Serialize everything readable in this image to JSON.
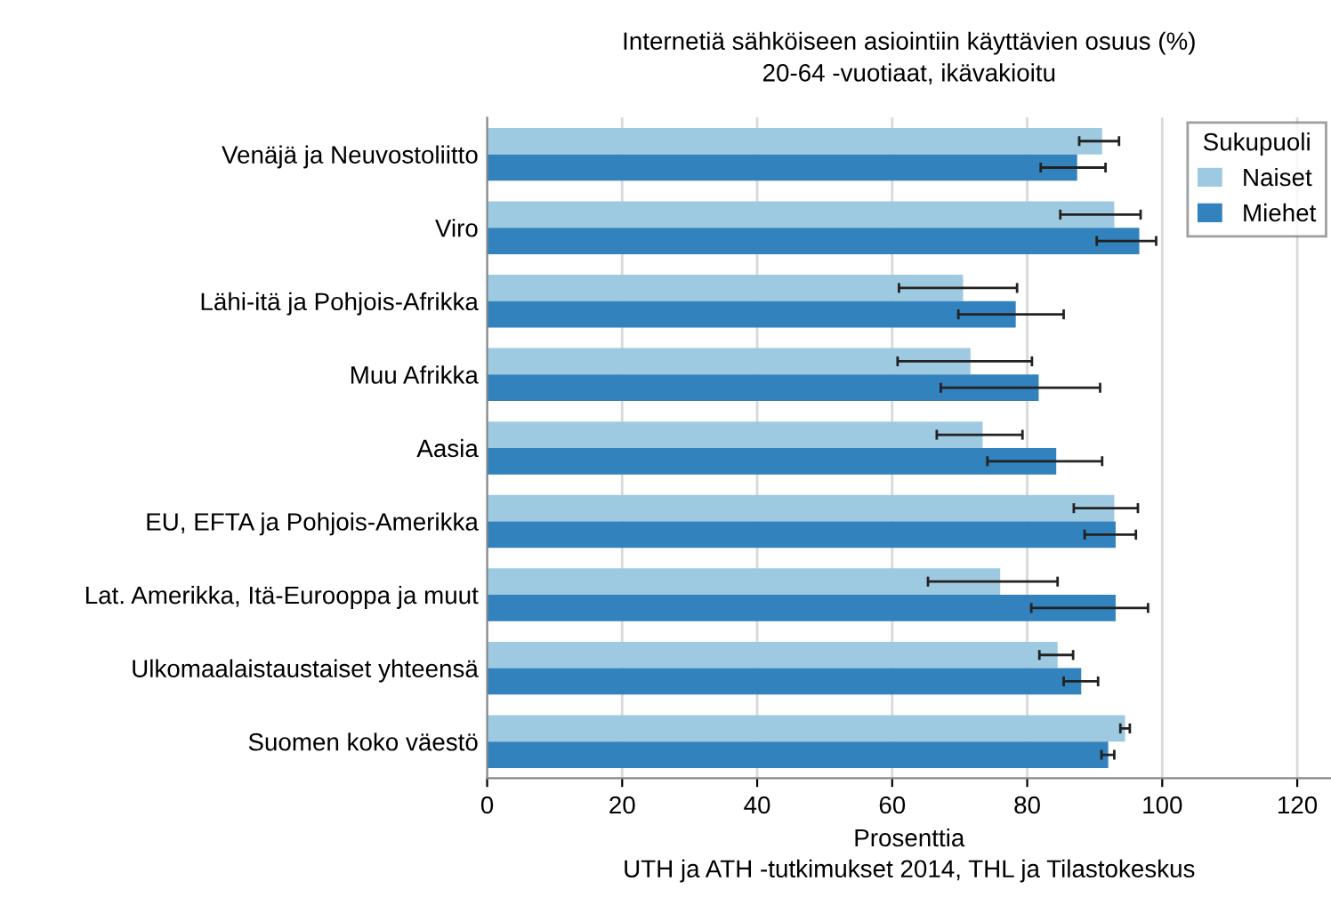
{
  "chart_data": {
    "type": "bar",
    "orientation": "horizontal",
    "title": "Internetiä sähköiseen asiointiin käyttävien osuus (%)",
    "subtitle": "20-64 -vuotiaat, ikävakioitu",
    "xlabel": "Prosenttia",
    "legend_title": "Sukupuoli",
    "annotations": [
      "UTH ja ATH -tutkimukset 2014, THL ja Tilastokeskus"
    ],
    "categories": [
      "Venäjä ja Neuvostoliitto",
      "Viro",
      "Lähi-itä ja Pohjois-Afrikka",
      "Muu Afrikka",
      "Aasia",
      "EU, EFTA ja Pohjois-Amerikka",
      "Lat. Amerikka, Itä-Eurooppa ja muut",
      "Ulkomaalaistaustaiset yhteensä",
      "Suomen koko väestö"
    ],
    "series": [
      {
        "name": "Naiset",
        "color": "#9ecae1",
        "values": [
          91.1,
          92.9,
          70.5,
          71.6,
          73.4,
          92.9,
          76.0,
          84.5,
          94.5
        ],
        "errors": [
          [
            87.7,
            93.6
          ],
          [
            84.9,
            96.8
          ],
          [
            61.0,
            78.5
          ],
          [
            60.8,
            80.7
          ],
          [
            66.6,
            79.3
          ],
          [
            86.9,
            96.4
          ],
          [
            65.3,
            84.5
          ],
          [
            81.8,
            86.8
          ],
          [
            93.8,
            95.2
          ]
        ]
      },
      {
        "name": "Miehet",
        "color": "#3182bd",
        "values": [
          87.4,
          96.6,
          78.3,
          81.7,
          84.3,
          93.1,
          93.1,
          88.0,
          92.0
        ],
        "errors": [
          [
            82.0,
            91.6
          ],
          [
            90.3,
            99.1
          ],
          [
            69.8,
            85.4
          ],
          [
            67.2,
            90.8
          ],
          [
            74.1,
            91.1
          ],
          [
            88.5,
            96.1
          ],
          [
            80.6,
            97.9
          ],
          [
            85.4,
            90.5
          ],
          [
            91.0,
            92.9
          ]
        ]
      }
    ],
    "xlim": [
      0,
      125
    ],
    "xticks": [
      0,
      20,
      40,
      60,
      80,
      100,
      120
    ],
    "grid": "x",
    "legend": "top right"
  }
}
